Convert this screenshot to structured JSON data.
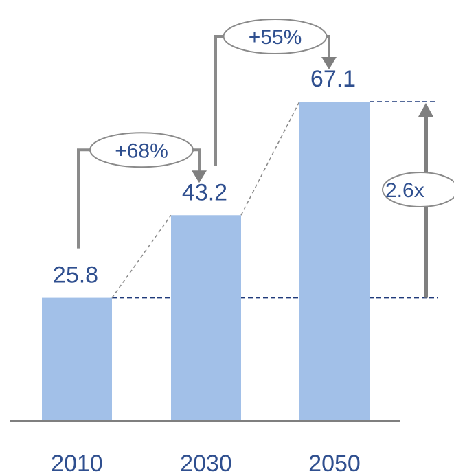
{
  "chart_data": {
    "type": "bar",
    "categories": [
      "2010",
      "2030",
      "2050"
    ],
    "values": [
      25.8,
      43.2,
      67.1
    ],
    "value_labels": [
      "25.8",
      "43.2",
      "67.1"
    ],
    "ylim": [
      0,
      67.1
    ],
    "grid": false,
    "legend": "none",
    "growth_annotations": [
      {
        "from": "2010",
        "to": "2030",
        "label": "+68%"
      },
      {
        "from": "2030",
        "to": "2050",
        "label": "+55%"
      }
    ],
    "ratio_annotation": {
      "from": "2010",
      "to": "2050",
      "label": "2.6x"
    },
    "colors": {
      "bar": "#a2c0e8",
      "text": "#2f4f8f",
      "annotation": "#8a8a8a",
      "reference_line": "#1f3a7a",
      "axis": "#7f7f7f"
    }
  }
}
